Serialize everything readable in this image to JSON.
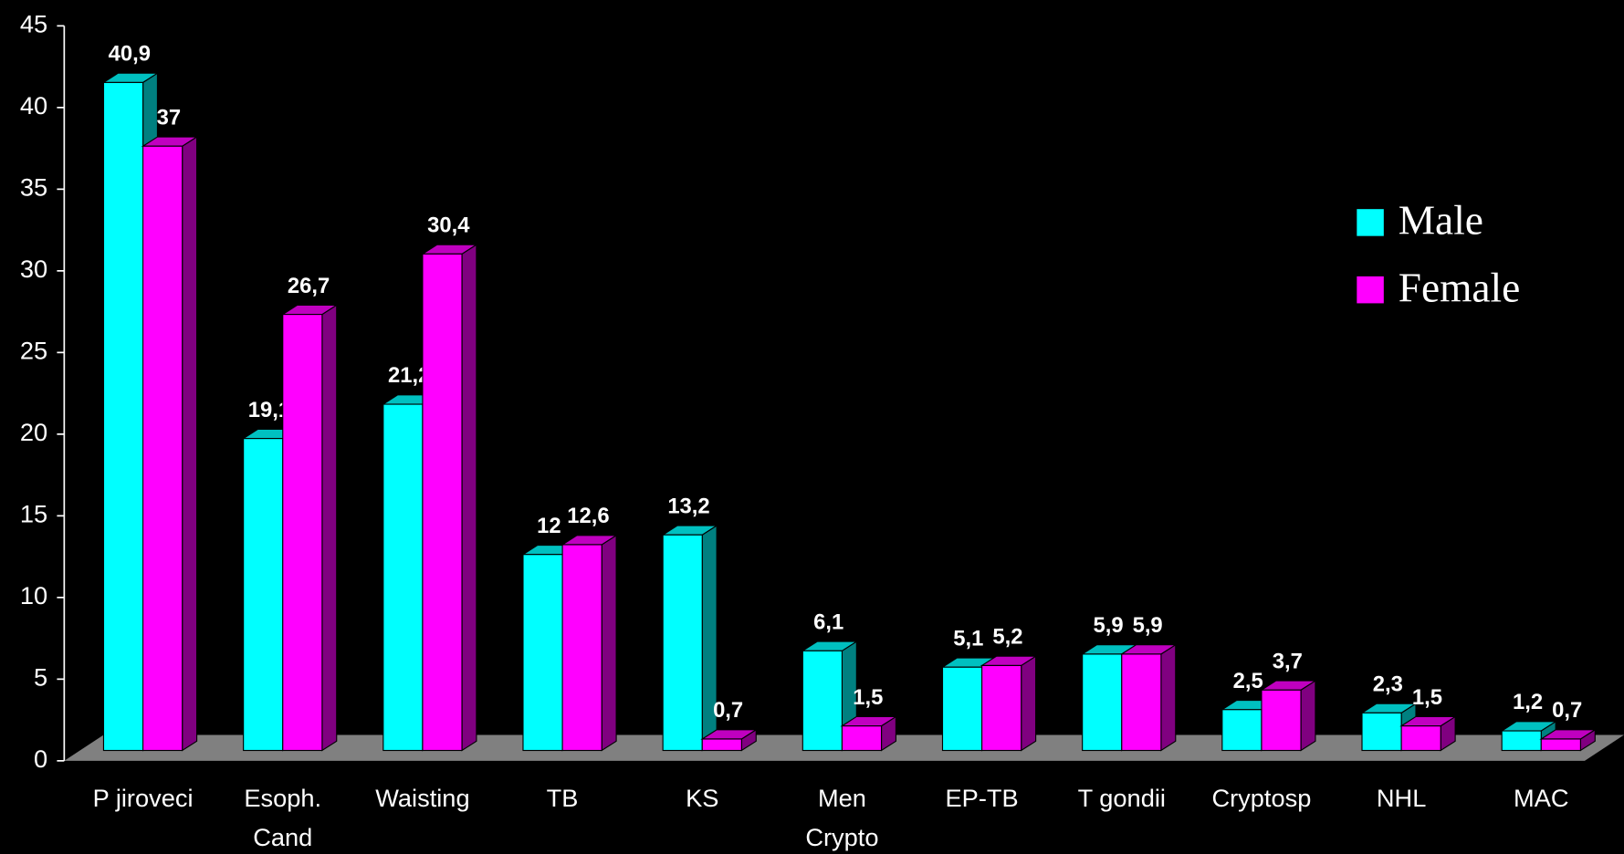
{
  "chart_data": {
    "type": "bar3d",
    "categories": [
      "P jiroveci",
      "Esoph.\nCand",
      "Waisting",
      "TB",
      "KS",
      "Men\nCrypto",
      "EP-TB",
      "T gondii",
      "Cryptosp",
      "NHL",
      "MAC"
    ],
    "series": [
      {
        "name": "Male",
        "color": "#00ffff",
        "side": "#008080",
        "values": [
          40.9,
          19.1,
          21.2,
          12,
          13.2,
          6.1,
          5.1,
          5.9,
          2.5,
          2.3,
          1.2
        ],
        "value_labels": [
          "40,9",
          "19,1",
          "21,2",
          "12",
          "13,2",
          "6,1",
          "5,1",
          "5,9",
          "2,5",
          "2,3",
          "1,2"
        ]
      },
      {
        "name": "Female",
        "color": "#ff00ff",
        "side": "#800080",
        "values": [
          37,
          26.7,
          30.4,
          12.6,
          0.7,
          1.5,
          5.2,
          5.9,
          3.7,
          1.5,
          0.7
        ],
        "value_labels": [
          "37",
          "26,7",
          "30,4",
          "12,6",
          "0,7",
          "1,5",
          "5,2",
          "5,9",
          "3,7",
          "1,5",
          "0,7"
        ]
      }
    ],
    "ylim": [
      0,
      45
    ],
    "yticks": [
      0,
      5,
      10,
      15,
      20,
      25,
      30,
      35,
      40,
      45
    ],
    "grid": false,
    "legend": "right"
  }
}
